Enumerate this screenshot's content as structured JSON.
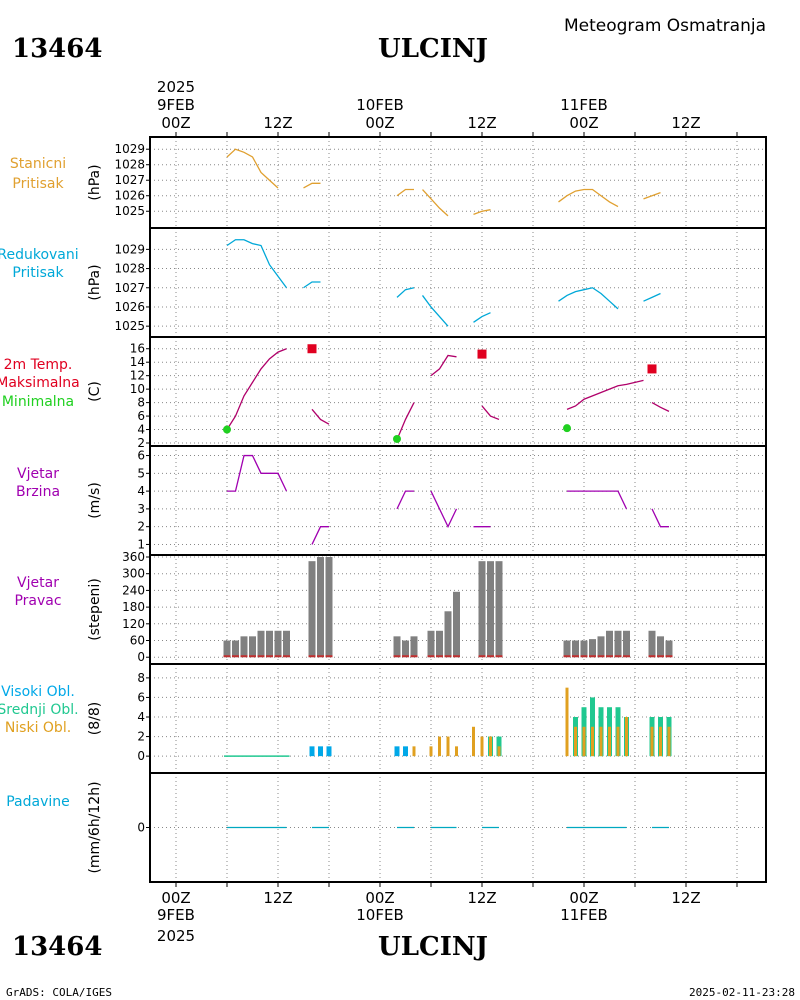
{
  "header": {
    "station_id": "13464",
    "station_name": "ULCINJ",
    "subtitle": "Meteogram Osmatranja"
  },
  "footer": {
    "credit": "GrADS: COLA/IGES",
    "timestamp": "2025-02-11-23:28"
  },
  "time_axis": {
    "year": "2025",
    "ticks": [
      "00Z",
      "12Z",
      "00Z",
      "12Z",
      "00Z",
      "12Z"
    ],
    "dates": [
      "9FEB",
      "10FEB",
      "11FEB"
    ]
  },
  "colors": {
    "pressure": "#e0a030",
    "reduced": "#00a8d8",
    "temp_line": "#b0006a",
    "max": "#e00020",
    "min": "#20d020",
    "wind": "#a000b0",
    "dir_bar": "#808080",
    "dir_base": "#c03030",
    "high_cloud": "#00a8e8",
    "mid_cloud": "#20c890",
    "low_cloud": "#e0a020",
    "precip": "#00a8c0"
  },
  "panel_labels": {
    "pressure": [
      "Stanicni",
      "Pritisak"
    ],
    "reduced": [
      "Redukovani",
      "Pritisak"
    ],
    "temp": [
      "2m Temp.",
      "Maksimalna",
      "Minimalna"
    ],
    "wind_speed": [
      "Vjetar",
      "Brzina"
    ],
    "wind_dir": [
      "Vjetar",
      "Pravac"
    ],
    "cloud": [
      "Visoki Obl.",
      "Srednji Obl.",
      "Niski Obl."
    ],
    "precip": [
      "Padavine"
    ]
  },
  "chart_data": [
    {
      "type": "line",
      "panel": "pressure",
      "ylabel": "(hPa)",
      "yticks": [
        1025,
        1026,
        1027,
        1028,
        1029
      ],
      "ylim": [
        1024.5,
        1029.4
      ],
      "series": [
        {
          "segments": [
            [
              [
                6,
                1028.5
              ],
              [
                7,
                1029
              ],
              [
                8,
                1028.8
              ],
              [
                9,
                1028.5
              ],
              [
                10,
                1027.5
              ],
              [
                11,
                1027
              ],
              [
                12,
                1026.5
              ]
            ],
            [
              [
                15,
                1026.5
              ],
              [
                16,
                1026.8
              ],
              [
                17,
                1026.8
              ]
            ],
            [
              [
                26,
                1026
              ],
              [
                27,
                1026.4
              ],
              [
                28,
                1026.4
              ]
            ],
            [
              [
                29,
                1026.4
              ],
              [
                30,
                1025.8
              ],
              [
                31,
                1025.2
              ],
              [
                32,
                1024.7
              ]
            ],
            [
              [
                35,
                1024.8
              ],
              [
                36,
                1025
              ],
              [
                37,
                1025.1
              ]
            ],
            [
              [
                45,
                1025.6
              ],
              [
                46,
                1026
              ],
              [
                47,
                1026.3
              ],
              [
                48,
                1026.4
              ],
              [
                49,
                1026.4
              ],
              [
                50,
                1026
              ],
              [
                51,
                1025.6
              ],
              [
                52,
                1025.3
              ]
            ],
            [
              [
                55,
                1025.8
              ],
              [
                56,
                1026
              ],
              [
                57,
                1026.2
              ]
            ]
          ]
        }
      ]
    },
    {
      "type": "line",
      "panel": "reduced",
      "ylabel": "(hPa)",
      "yticks": [
        1025,
        1026,
        1027,
        1028,
        1029
      ],
      "ylim": [
        1024.8,
        1029.8
      ],
      "series": [
        {
          "segments": [
            [
              [
                6,
                1029.2
              ],
              [
                7,
                1029.5
              ],
              [
                8,
                1029.5
              ],
              [
                9,
                1029.3
              ],
              [
                10,
                1029.2
              ],
              [
                11,
                1028.2
              ],
              [
                12,
                1027.6
              ],
              [
                13,
                1027
              ]
            ],
            [
              [
                15,
                1027
              ],
              [
                16,
                1027.3
              ],
              [
                17,
                1027.3
              ]
            ],
            [
              [
                26,
                1026.5
              ],
              [
                27,
                1026.9
              ],
              [
                28,
                1027
              ]
            ],
            [
              [
                29,
                1026.6
              ],
              [
                30,
                1026
              ],
              [
                31,
                1025.5
              ],
              [
                32,
                1025
              ]
            ],
            [
              [
                35,
                1025.2
              ],
              [
                36,
                1025.5
              ],
              [
                37,
                1025.7
              ]
            ],
            [
              [
                45,
                1026.3
              ],
              [
                46,
                1026.6
              ],
              [
                47,
                1026.8
              ],
              [
                48,
                1026.9
              ],
              [
                49,
                1027
              ],
              [
                50,
                1026.7
              ],
              [
                51,
                1026.3
              ],
              [
                52,
                1025.9
              ]
            ],
            [
              [
                55,
                1026.3
              ],
              [
                56,
                1026.5
              ],
              [
                57,
                1026.7
              ]
            ]
          ]
        }
      ]
    },
    {
      "type": "line",
      "panel": "temp",
      "ylabel": "(C)",
      "yticks": [
        2,
        4,
        6,
        8,
        10,
        12,
        14,
        16
      ],
      "ylim": [
        2,
        17
      ],
      "series": [
        {
          "name": "",
          "segments": [
            [
              [
                6,
                4
              ],
              [
                7,
                6
              ],
              [
                8,
                9
              ],
              [
                9,
                11
              ],
              [
                10,
                13
              ],
              [
                11,
                14.5
              ],
              [
                12,
                15.5
              ],
              [
                13,
                16
              ]
            ],
            [
              [
                16,
                7
              ],
              [
                17,
                5.5
              ],
              [
                18,
                4.8
              ]
            ],
            [
              [
                26,
                2.5
              ],
              [
                27,
                5.5
              ],
              [
                28,
                8
              ]
            ],
            [
              [
                30,
                12
              ],
              [
                31,
                13
              ],
              [
                32,
                15
              ],
              [
                33,
                14.8
              ]
            ],
            [
              [
                36,
                7.5
              ],
              [
                37,
                6
              ],
              [
                38,
                5.5
              ]
            ],
            [
              [
                46,
                7
              ],
              [
                47,
                7.5
              ],
              [
                48,
                8.5
              ],
              [
                49,
                9
              ],
              [
                50,
                9.5
              ],
              [
                51,
                10
              ],
              [
                52,
                10.5
              ],
              [
                53,
                10.7
              ],
              [
                54,
                11
              ],
              [
                55,
                11.3
              ]
            ],
            [
              [
                56,
                8
              ],
              [
                57,
                7.3
              ],
              [
                58,
                6.7
              ]
            ]
          ]
        }
      ],
      "max_points": [
        [
          16,
          16
        ],
        [
          36,
          15.2
        ],
        [
          56,
          13
        ]
      ],
      "min_points": [
        [
          6,
          4
        ],
        [
          26,
          2.6
        ],
        [
          46,
          4.2
        ]
      ]
    },
    {
      "type": "line",
      "panel": "wind_speed",
      "ylabel": "(m/s)",
      "yticks": [
        1,
        2,
        3,
        4,
        5,
        6
      ],
      "ylim": [
        0.8,
        6.2
      ],
      "series": [
        {
          "segments": [
            [
              [
                6,
                4
              ],
              [
                7,
                4
              ],
              [
                8,
                6
              ],
              [
                9,
                6
              ],
              [
                10,
                5
              ],
              [
                11,
                5
              ],
              [
                12,
                5
              ],
              [
                13,
                4
              ]
            ],
            [
              [
                16,
                1
              ],
              [
                17,
                2
              ],
              [
                18,
                2
              ]
            ],
            [
              [
                26,
                3
              ],
              [
                27,
                4
              ],
              [
                28,
                4
              ]
            ],
            [
              [
                30,
                4
              ],
              [
                31,
                3
              ],
              [
                32,
                2
              ],
              [
                33,
                3
              ]
            ],
            [
              [
                35,
                2
              ],
              [
                36,
                2
              ],
              [
                37,
                2
              ]
            ],
            [
              [
                46,
                4
              ],
              [
                47,
                4
              ],
              [
                48,
                4
              ],
              [
                49,
                4
              ],
              [
                50,
                4
              ],
              [
                51,
                4
              ],
              [
                52,
                4
              ],
              [
                53,
                3
              ]
            ],
            [
              [
                56,
                3
              ],
              [
                57,
                2
              ],
              [
                58,
                2
              ]
            ]
          ]
        }
      ]
    },
    {
      "type": "bar",
      "panel": "wind_dir",
      "ylabel": "(stepeni)",
      "yticks": [
        0,
        60,
        120,
        180,
        240,
        300,
        360
      ],
      "ylim": [
        -10,
        360
      ],
      "bars": [
        [
          6,
          60
        ],
        [
          7,
          60
        ],
        [
          8,
          75
        ],
        [
          9,
          75
        ],
        [
          10,
          95
        ],
        [
          11,
          95
        ],
        [
          12,
          95
        ],
        [
          13,
          95
        ],
        [
          16,
          345
        ],
        [
          17,
          360
        ],
        [
          18,
          360
        ],
        [
          26,
          75
        ],
        [
          27,
          60
        ],
        [
          28,
          75
        ],
        [
          30,
          95
        ],
        [
          31,
          95
        ],
        [
          32,
          165
        ],
        [
          33,
          235
        ],
        [
          36,
          345
        ],
        [
          37,
          345
        ],
        [
          38,
          345
        ],
        [
          46,
          60
        ],
        [
          47,
          60
        ],
        [
          48,
          60
        ],
        [
          49,
          65
        ],
        [
          50,
          75
        ],
        [
          51,
          95
        ],
        [
          52,
          95
        ],
        [
          53,
          95
        ],
        [
          56,
          95
        ],
        [
          57,
          75
        ],
        [
          58,
          60
        ]
      ]
    },
    {
      "type": "bar",
      "panel": "cloud",
      "ylabel": "(8/8)",
      "yticks": [
        0,
        2,
        4,
        6,
        8
      ],
      "ylim": [
        -0.6,
        8.6
      ],
      "high": [
        [
          16,
          1
        ],
        [
          17,
          1
        ],
        [
          18,
          1
        ],
        [
          26,
          1
        ],
        [
          27,
          1
        ]
      ],
      "mid": [
        [
          37,
          2
        ],
        [
          38,
          2
        ],
        [
          47,
          4
        ],
        [
          48,
          5
        ],
        [
          49,
          6
        ],
        [
          50,
          5
        ],
        [
          51,
          5
        ],
        [
          52,
          5
        ],
        [
          53,
          4
        ],
        [
          56,
          4
        ],
        [
          57,
          4
        ],
        [
          58,
          4
        ]
      ],
      "low": [
        [
          28,
          1
        ],
        [
          30,
          1
        ],
        [
          31,
          2
        ],
        [
          32,
          2
        ],
        [
          33,
          1
        ],
        [
          35,
          3
        ],
        [
          36,
          2
        ],
        [
          37,
          2
        ],
        [
          38,
          1
        ],
        [
          46,
          7
        ],
        [
          47,
          3
        ],
        [
          48,
          3
        ],
        [
          49,
          3
        ],
        [
          50,
          3
        ],
        [
          51,
          3
        ],
        [
          52,
          3
        ],
        [
          53,
          4
        ],
        [
          56,
          3
        ],
        [
          57,
          3
        ],
        [
          58,
          3
        ]
      ],
      "traces": [
        [
          6,
          13
        ]
      ]
    },
    {
      "type": "line",
      "panel": "precip",
      "ylabel": "(mm/6h/12h)",
      "yticks": [
        0
      ],
      "ylim": [
        -1,
        1
      ],
      "series": [
        {
          "segments": [
            [
              [
                6,
                0
              ],
              [
                13,
                0
              ]
            ],
            [
              [
                16,
                0
              ],
              [
                18,
                0
              ]
            ],
            [
              [
                26,
                0
              ],
              [
                28,
                0
              ]
            ],
            [
              [
                30,
                0
              ],
              [
                33,
                0
              ]
            ],
            [
              [
                36,
                0
              ],
              [
                38,
                0
              ]
            ],
            [
              [
                46,
                0
              ],
              [
                53,
                0
              ]
            ],
            [
              [
                56,
                0
              ],
              [
                58,
                0
              ]
            ]
          ]
        }
      ]
    }
  ]
}
